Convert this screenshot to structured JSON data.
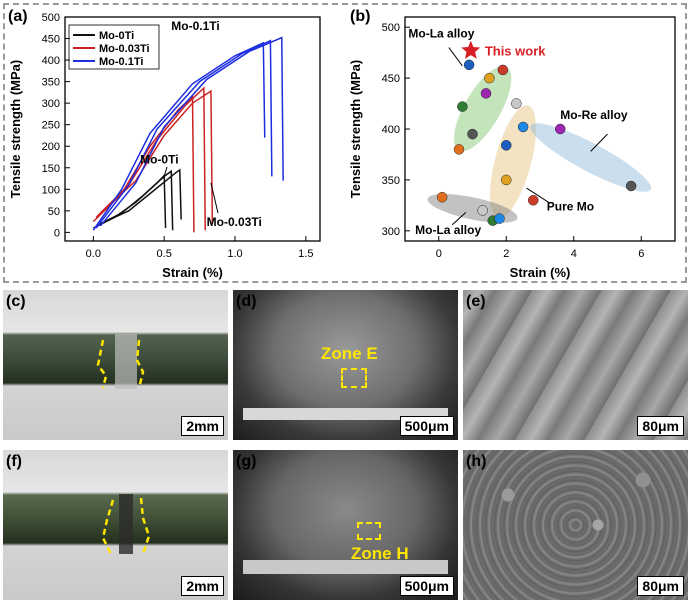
{
  "panels": {
    "a": {
      "label": "(a)"
    },
    "b": {
      "label": "(b)"
    },
    "c": {
      "label": "(c)",
      "scale": "2mm"
    },
    "d": {
      "label": "(d)",
      "scale": "500μm",
      "zone": "Zone E"
    },
    "e": {
      "label": "(e)",
      "scale": "80μm"
    },
    "f": {
      "label": "(f)",
      "scale": "2mm"
    },
    "g": {
      "label": "(g)",
      "scale": "500μm",
      "zone": "Zone H"
    },
    "h": {
      "label": "(h)",
      "scale": "80μm"
    }
  },
  "colors": {
    "mo0ti": "#111111",
    "mo003ti": "#cc2222",
    "mo01ti": "#1d2ee0",
    "zone": "#ffe600",
    "star": "#d81f26"
  },
  "chart_data": [
    {
      "type": "line",
      "xlabel": "Strain (%)",
      "ylabel": "Tensile strength (MPa)",
      "xlim": [
        -0.2,
        1.6
      ],
      "ylim": [
        -20,
        500
      ],
      "xticks": [
        0.0,
        0.5,
        1.0,
        1.5
      ],
      "yticks": [
        0,
        50,
        100,
        150,
        200,
        250,
        300,
        350,
        400,
        450,
        500
      ],
      "legend": "top-left",
      "series": [
        {
          "name": "Mo-0Ti",
          "color": "#111111",
          "curves": [
            {
              "x": [
                0.0,
                0.15,
                0.3,
                0.45,
                0.5,
                0.51
              ],
              "y": [
                10,
                35,
                70,
                115,
                132,
                10
              ]
            },
            {
              "x": [
                0.02,
                0.2,
                0.35,
                0.5,
                0.55,
                0.56
              ],
              "y": [
                15,
                45,
                85,
                130,
                142,
                5
              ]
            },
            {
              "x": [
                0.05,
                0.25,
                0.4,
                0.58,
                0.61,
                0.62
              ],
              "y": [
                20,
                50,
                90,
                138,
                145,
                30
              ]
            }
          ]
        },
        {
          "name": "Mo-0.03Ti",
          "color": "#cc2222",
          "curves": [
            {
              "x": [
                0.0,
                0.2,
                0.4,
                0.6,
                0.7,
                0.71
              ],
              "y": [
                25,
                90,
                200,
                285,
                315,
                0
              ]
            },
            {
              "x": [
                0.02,
                0.25,
                0.45,
                0.65,
                0.78,
                0.79
              ],
              "y": [
                35,
                110,
                215,
                295,
                335,
                5
              ]
            },
            {
              "x": [
                0.05,
                0.3,
                0.5,
                0.7,
                0.83,
                0.84
              ],
              "y": [
                45,
                120,
                225,
                300,
                328,
                20
              ]
            }
          ]
        },
        {
          "name": "Mo-0.1Ti",
          "color": "#1d2ee0",
          "curves": [
            {
              "x": [
                0.0,
                0.2,
                0.4,
                0.7,
                1.0,
                1.2,
                1.21
              ],
              "y": [
                5,
                100,
                230,
                345,
                410,
                440,
                220
              ]
            },
            {
              "x": [
                0.02,
                0.25,
                0.45,
                0.75,
                1.05,
                1.25,
                1.26
              ],
              "y": [
                10,
                110,
                240,
                350,
                415,
                445,
                130
              ]
            },
            {
              "x": [
                0.05,
                0.3,
                0.5,
                0.8,
                1.1,
                1.33,
                1.34
              ],
              "y": [
                15,
                115,
                245,
                355,
                420,
                452,
                120
              ]
            }
          ]
        }
      ],
      "annotations": [
        "Mo-0.1Ti",
        "Mo-0Ti",
        "Mo-0.03Ti"
      ]
    },
    {
      "type": "scatter",
      "xlabel": "Strain (%)",
      "ylabel": "Tensile strength (MPa)",
      "xlim": [
        -1,
        7
      ],
      "ylim": [
        290,
        510
      ],
      "xticks": [
        0,
        2,
        4,
        6
      ],
      "yticks": [
        300,
        350,
        400,
        450,
        500
      ],
      "groups": [
        {
          "name": "Mo-La alloy",
          "color": "#7cc46a",
          "points": [
            [
              0.9,
              463
            ],
            [
              1.5,
              450
            ],
            [
              1.9,
              458
            ],
            [
              0.7,
              422
            ],
            [
              1.4,
              435
            ],
            [
              1.0,
              395
            ],
            [
              0.6,
              380
            ]
          ]
        },
        {
          "name": "Pure Mo",
          "color": "#e5c07a",
          "points": [
            [
              2.3,
              425
            ],
            [
              2.5,
              402
            ],
            [
              2.0,
              384
            ],
            [
              2.0,
              350
            ],
            [
              2.8,
              330
            ],
            [
              1.6,
              310
            ]
          ]
        },
        {
          "name": "Mo-Re alloy",
          "color": "#8ab6d6",
          "points": [
            [
              3.6,
              400
            ],
            [
              5.7,
              344
            ]
          ]
        },
        {
          "name": "Mo-La alloy",
          "color": "#777777",
          "points": [
            [
              0.1,
              333
            ],
            [
              1.3,
              320
            ],
            [
              1.8,
              312
            ]
          ]
        }
      ],
      "highlight": {
        "label": "This work",
        "x": 0.95,
        "y": 477
      }
    }
  ]
}
